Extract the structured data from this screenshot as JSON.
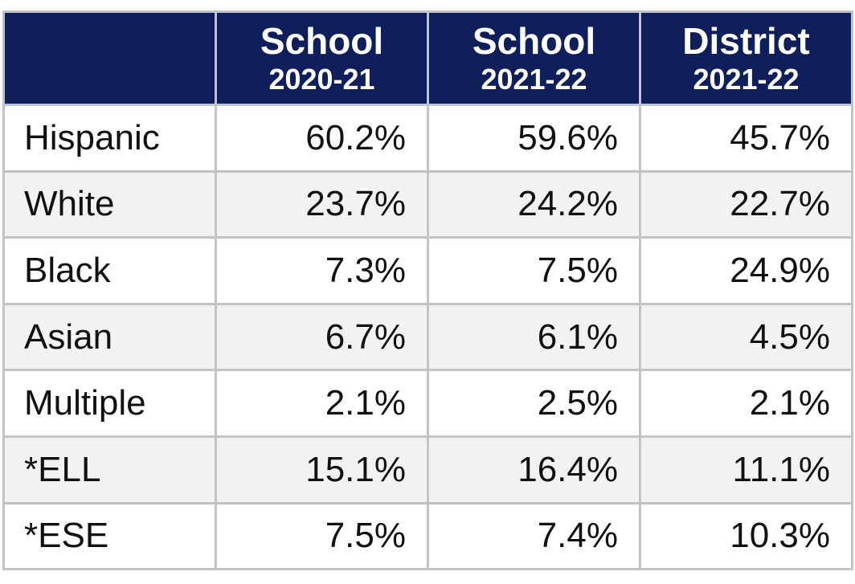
{
  "table": {
    "columns": [
      {
        "line1": "School",
        "line2": "2020-21"
      },
      {
        "line1": "School",
        "line2": "2021-22"
      },
      {
        "line1": "District",
        "line2": "2021-22"
      }
    ],
    "rows": [
      [
        "Hispanic",
        "60.2%",
        "59.6%",
        "45.7%"
      ],
      [
        "White",
        "23.7%",
        "24.2%",
        "22.7%"
      ],
      [
        "Black",
        "7.3%",
        "7.5%",
        "24.9%"
      ],
      [
        "Asian",
        "6.7%",
        "6.1%",
        "4.5%"
      ],
      [
        "Multiple",
        "2.1%",
        "2.5%",
        "2.1%"
      ],
      [
        "*ELL",
        "15.1%",
        "16.4%",
        "11.1%"
      ],
      [
        "*ESE",
        "7.5%",
        "7.4%",
        "10.3%"
      ]
    ]
  }
}
